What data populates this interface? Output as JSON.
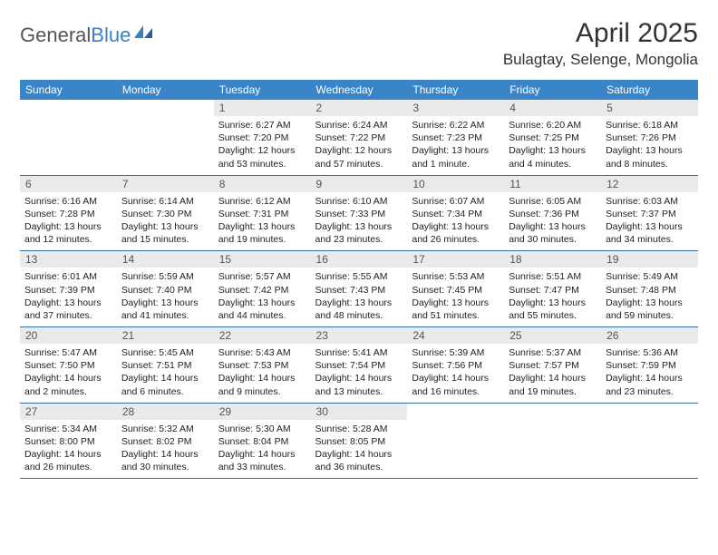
{
  "brand": {
    "part1": "General",
    "part2": "Blue"
  },
  "title": "April 2025",
  "location": "Bulagtay, Selenge, Mongolia",
  "colors": {
    "header_bg": "#3a85c8",
    "header_text": "#ffffff",
    "daynum_bg": "#e9eaeb",
    "border": "#3a6fa0",
    "brand_accent": "#3a7fc4"
  },
  "weekdays": [
    "Sunday",
    "Monday",
    "Tuesday",
    "Wednesday",
    "Thursday",
    "Friday",
    "Saturday"
  ],
  "weeks": [
    [
      null,
      null,
      {
        "n": "1",
        "sr": "Sunrise: 6:27 AM",
        "ss": "Sunset: 7:20 PM",
        "dl": "Daylight: 12 hours and 53 minutes."
      },
      {
        "n": "2",
        "sr": "Sunrise: 6:24 AM",
        "ss": "Sunset: 7:22 PM",
        "dl": "Daylight: 12 hours and 57 minutes."
      },
      {
        "n": "3",
        "sr": "Sunrise: 6:22 AM",
        "ss": "Sunset: 7:23 PM",
        "dl": "Daylight: 13 hours and 1 minute."
      },
      {
        "n": "4",
        "sr": "Sunrise: 6:20 AM",
        "ss": "Sunset: 7:25 PM",
        "dl": "Daylight: 13 hours and 4 minutes."
      },
      {
        "n": "5",
        "sr": "Sunrise: 6:18 AM",
        "ss": "Sunset: 7:26 PM",
        "dl": "Daylight: 13 hours and 8 minutes."
      }
    ],
    [
      {
        "n": "6",
        "sr": "Sunrise: 6:16 AM",
        "ss": "Sunset: 7:28 PM",
        "dl": "Daylight: 13 hours and 12 minutes."
      },
      {
        "n": "7",
        "sr": "Sunrise: 6:14 AM",
        "ss": "Sunset: 7:30 PM",
        "dl": "Daylight: 13 hours and 15 minutes."
      },
      {
        "n": "8",
        "sr": "Sunrise: 6:12 AM",
        "ss": "Sunset: 7:31 PM",
        "dl": "Daylight: 13 hours and 19 minutes."
      },
      {
        "n": "9",
        "sr": "Sunrise: 6:10 AM",
        "ss": "Sunset: 7:33 PM",
        "dl": "Daylight: 13 hours and 23 minutes."
      },
      {
        "n": "10",
        "sr": "Sunrise: 6:07 AM",
        "ss": "Sunset: 7:34 PM",
        "dl": "Daylight: 13 hours and 26 minutes."
      },
      {
        "n": "11",
        "sr": "Sunrise: 6:05 AM",
        "ss": "Sunset: 7:36 PM",
        "dl": "Daylight: 13 hours and 30 minutes."
      },
      {
        "n": "12",
        "sr": "Sunrise: 6:03 AM",
        "ss": "Sunset: 7:37 PM",
        "dl": "Daylight: 13 hours and 34 minutes."
      }
    ],
    [
      {
        "n": "13",
        "sr": "Sunrise: 6:01 AM",
        "ss": "Sunset: 7:39 PM",
        "dl": "Daylight: 13 hours and 37 minutes."
      },
      {
        "n": "14",
        "sr": "Sunrise: 5:59 AM",
        "ss": "Sunset: 7:40 PM",
        "dl": "Daylight: 13 hours and 41 minutes."
      },
      {
        "n": "15",
        "sr": "Sunrise: 5:57 AM",
        "ss": "Sunset: 7:42 PM",
        "dl": "Daylight: 13 hours and 44 minutes."
      },
      {
        "n": "16",
        "sr": "Sunrise: 5:55 AM",
        "ss": "Sunset: 7:43 PM",
        "dl": "Daylight: 13 hours and 48 minutes."
      },
      {
        "n": "17",
        "sr": "Sunrise: 5:53 AM",
        "ss": "Sunset: 7:45 PM",
        "dl": "Daylight: 13 hours and 51 minutes."
      },
      {
        "n": "18",
        "sr": "Sunrise: 5:51 AM",
        "ss": "Sunset: 7:47 PM",
        "dl": "Daylight: 13 hours and 55 minutes."
      },
      {
        "n": "19",
        "sr": "Sunrise: 5:49 AM",
        "ss": "Sunset: 7:48 PM",
        "dl": "Daylight: 13 hours and 59 minutes."
      }
    ],
    [
      {
        "n": "20",
        "sr": "Sunrise: 5:47 AM",
        "ss": "Sunset: 7:50 PM",
        "dl": "Daylight: 14 hours and 2 minutes."
      },
      {
        "n": "21",
        "sr": "Sunrise: 5:45 AM",
        "ss": "Sunset: 7:51 PM",
        "dl": "Daylight: 14 hours and 6 minutes."
      },
      {
        "n": "22",
        "sr": "Sunrise: 5:43 AM",
        "ss": "Sunset: 7:53 PM",
        "dl": "Daylight: 14 hours and 9 minutes."
      },
      {
        "n": "23",
        "sr": "Sunrise: 5:41 AM",
        "ss": "Sunset: 7:54 PM",
        "dl": "Daylight: 14 hours and 13 minutes."
      },
      {
        "n": "24",
        "sr": "Sunrise: 5:39 AM",
        "ss": "Sunset: 7:56 PM",
        "dl": "Daylight: 14 hours and 16 minutes."
      },
      {
        "n": "25",
        "sr": "Sunrise: 5:37 AM",
        "ss": "Sunset: 7:57 PM",
        "dl": "Daylight: 14 hours and 19 minutes."
      },
      {
        "n": "26",
        "sr": "Sunrise: 5:36 AM",
        "ss": "Sunset: 7:59 PM",
        "dl": "Daylight: 14 hours and 23 minutes."
      }
    ],
    [
      {
        "n": "27",
        "sr": "Sunrise: 5:34 AM",
        "ss": "Sunset: 8:00 PM",
        "dl": "Daylight: 14 hours and 26 minutes."
      },
      {
        "n": "28",
        "sr": "Sunrise: 5:32 AM",
        "ss": "Sunset: 8:02 PM",
        "dl": "Daylight: 14 hours and 30 minutes."
      },
      {
        "n": "29",
        "sr": "Sunrise: 5:30 AM",
        "ss": "Sunset: 8:04 PM",
        "dl": "Daylight: 14 hours and 33 minutes."
      },
      {
        "n": "30",
        "sr": "Sunrise: 5:28 AM",
        "ss": "Sunset: 8:05 PM",
        "dl": "Daylight: 14 hours and 36 minutes."
      },
      null,
      null,
      null
    ]
  ]
}
